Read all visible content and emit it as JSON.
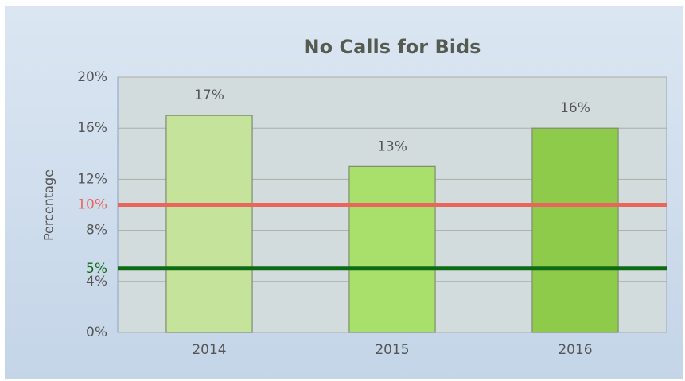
{
  "chart_data": {
    "type": "bar",
    "title": "No Calls for Bids",
    "y_label": "Percentage",
    "categories": [
      "2014",
      "2015",
      "2016"
    ],
    "values": [
      17,
      13,
      16
    ],
    "value_labels": [
      "17%",
      "13%",
      "16%"
    ],
    "colors": [
      "#c6e39c",
      "#a9e06b",
      "#8fcb4b"
    ],
    "ylim": [
      0,
      20
    ],
    "yticks": [
      {
        "value": 0,
        "label": "0%"
      },
      {
        "value": 4,
        "label": "4%"
      },
      {
        "value": 8,
        "label": "8%"
      },
      {
        "value": 12,
        "label": "12%"
      },
      {
        "value": 16,
        "label": "16%"
      },
      {
        "value": 20,
        "label": "20%"
      }
    ],
    "grid": true,
    "reference_lines": [
      {
        "value": 10,
        "label": "10%",
        "color": "#e8665c"
      },
      {
        "value": 5,
        "label": "5%",
        "color": "#0e6b14"
      }
    ]
  }
}
